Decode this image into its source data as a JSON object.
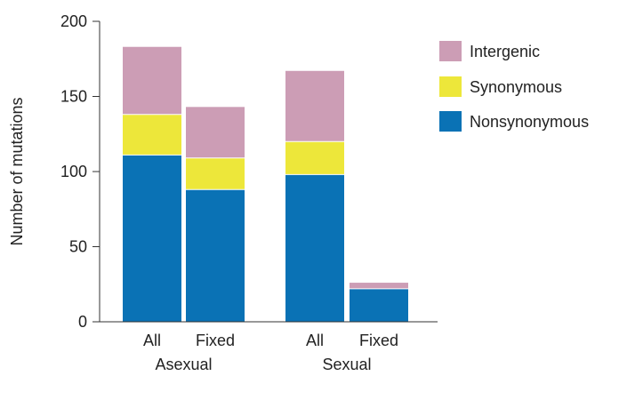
{
  "chart_data": {
    "type": "bar",
    "stacked": true,
    "title": "",
    "ylabel": "Number of mutations",
    "xlabel": "",
    "ylim": [
      0,
      200
    ],
    "yticks": [
      0,
      50,
      100,
      150,
      200
    ],
    "groups": [
      "Asexual",
      "Sexual"
    ],
    "categories": [
      "All",
      "Fixed",
      "All",
      "Fixed"
    ],
    "category_groups": [
      "Asexual",
      "Asexual",
      "Sexual",
      "Sexual"
    ],
    "series": [
      {
        "name": "Nonsynonymous",
        "color": "#0a72b5",
        "values": [
          111,
          88,
          98,
          22
        ]
      },
      {
        "name": "Synonymous",
        "color": "#ede73a",
        "values": [
          27,
          21,
          22,
          0
        ]
      },
      {
        "name": "Intergenic",
        "color": "#cc9db5",
        "values": [
          45,
          34,
          47,
          4
        ]
      }
    ],
    "legend": {
      "position": "top-right",
      "order": [
        "Intergenic",
        "Synonymous",
        "Nonsynonymous"
      ]
    },
    "grid": false
  }
}
